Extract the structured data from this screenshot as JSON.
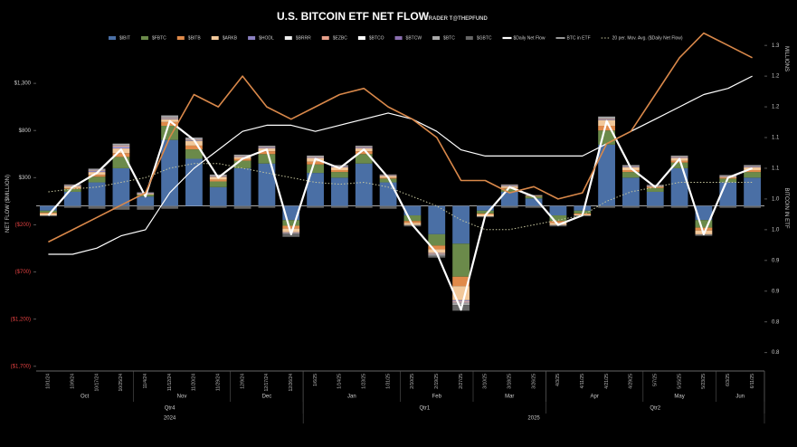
{
  "chart_data": {
    "type": "bar",
    "title": "U.S. BITCOIN ETF NET FLOW",
    "subtitle": "TRADER T@THEPFUND",
    "y_label": "NET FLOW ($MILLION)",
    "y2_label": "BITCOIN IN ETF",
    "y2_unit": "MILLIONS",
    "categories": [
      "10/1/24",
      "10/9/24",
      "10/17/24",
      "10/25/24",
      "11/4/24",
      "11/12/24",
      "11/20/24",
      "11/29/24",
      "12/9/24",
      "12/17/24",
      "12/26/24",
      "1/6/25",
      "1/14/25",
      "1/23/25",
      "1/31/25",
      "2/10/25",
      "2/19/25",
      "2/27/25",
      "3/10/25",
      "3/18/25",
      "3/26/25",
      "4/3/25",
      "4/11/25",
      "4/21/25",
      "4/29/25",
      "5/7/25",
      "5/15/25",
      "5/23/25",
      "6/3/25",
      "6/11/25"
    ],
    "x_groups": [
      [
        {
          "label": "Oct",
          "from": 0,
          "to": 3
        },
        {
          "label": "Nov",
          "from": 4,
          "to": 7
        },
        {
          "label": "Dec",
          "from": 8,
          "to": 10
        },
        {
          "label": "Jan",
          "from": 11,
          "to": 14
        },
        {
          "label": "Feb",
          "from": 15,
          "to": 17
        },
        {
          "label": "Mar",
          "from": 18,
          "to": 20
        },
        {
          "label": "Apr",
          "from": 21,
          "to": 24
        },
        {
          "label": "May",
          "from": 25,
          "to": 27
        },
        {
          "label": "Jun",
          "from": 28,
          "to": 29
        }
      ],
      [
        {
          "label": "Qtr4",
          "from": 0,
          "to": 10
        },
        {
          "label": "Qtr1",
          "from": 11,
          "to": 20
        },
        {
          "label": "Qtr2",
          "from": 21,
          "to": 29
        }
      ],
      [
        {
          "label": "2024",
          "from": 0,
          "to": 10
        },
        {
          "label": "2025",
          "from": 11,
          "to": 29
        }
      ]
    ],
    "ylim": [
      -1750,
      1800
    ],
    "yticks": [
      {
        "value": 1300,
        "label": "$1,300"
      },
      {
        "value": 800,
        "label": "$800"
      },
      {
        "value": 300,
        "label": "$300"
      },
      {
        "value": -200,
        "label": "($200)"
      },
      {
        "value": -700,
        "label": "($700)"
      },
      {
        "value": -1200,
        "label": "($1,200)"
      },
      {
        "value": -1700,
        "label": "($1,700)"
      }
    ],
    "y2lim": [
      0.77,
      1.315
    ],
    "y2ticks": [
      {
        "value": 1.3,
        "label": "1.3"
      },
      {
        "value": 1.25,
        "label": "1.2"
      },
      {
        "value": 1.2,
        "label": "1.2"
      },
      {
        "value": 1.15,
        "label": "1.1"
      },
      {
        "value": 1.1,
        "label": "1.1"
      },
      {
        "value": 1.05,
        "label": "1.0"
      },
      {
        "value": 1.0,
        "label": "1.0"
      },
      {
        "value": 0.95,
        "label": "0.9"
      },
      {
        "value": 0.9,
        "label": "0.9"
      },
      {
        "value": 0.85,
        "label": "0.8"
      },
      {
        "value": 0.8,
        "label": "0.8"
      }
    ],
    "series": [
      {
        "name": "$IBIT",
        "type": "bar",
        "color": "#4a6fa5",
        "values": [
          -50,
          150,
          250,
          400,
          100,
          700,
          500,
          200,
          400,
          450,
          -150,
          350,
          300,
          450,
          250,
          -100,
          -300,
          -400,
          -50,
          150,
          80,
          -100,
          -50,
          650,
          300,
          150,
          400,
          -150,
          250,
          300
        ]
      },
      {
        "name": "$FBTC",
        "type": "bar",
        "color": "#6b8a4a",
        "values": [
          -20,
          30,
          60,
          120,
          20,
          150,
          100,
          60,
          80,
          100,
          -60,
          90,
          60,
          100,
          40,
          -60,
          -120,
          -350,
          -30,
          30,
          20,
          -60,
          -30,
          150,
          60,
          40,
          60,
          -80,
          40,
          60
        ]
      },
      {
        "name": "$BITB",
        "type": "bar",
        "color": "#e08a4a",
        "values": [
          -10,
          10,
          20,
          40,
          0,
          40,
          40,
          20,
          20,
          30,
          -30,
          30,
          20,
          30,
          10,
          -20,
          -40,
          -100,
          -10,
          10,
          5,
          -20,
          -10,
          50,
          20,
          10,
          20,
          -30,
          10,
          20
        ]
      },
      {
        "name": "$ARKB",
        "type": "bar",
        "color": "#f2c89a",
        "values": [
          -20,
          20,
          30,
          50,
          10,
          30,
          50,
          30,
          20,
          30,
          -40,
          40,
          30,
          30,
          20,
          -20,
          -40,
          -150,
          -20,
          20,
          5,
          -20,
          -10,
          60,
          30,
          10,
          30,
          -40,
          10,
          30
        ]
      },
      {
        "name": "$HODL",
        "type": "bar",
        "color": "#8a80c0",
        "values": [
          0,
          5,
          10,
          15,
          5,
          5,
          5,
          5,
          5,
          5,
          -5,
          5,
          5,
          5,
          5,
          0,
          -5,
          -10,
          0,
          5,
          0,
          0,
          0,
          5,
          5,
          5,
          5,
          0,
          5,
          5
        ]
      },
      {
        "name": "$BRRR",
        "type": "bar",
        "color": "#eeeeee",
        "values": [
          0,
          2,
          3,
          5,
          0,
          3,
          3,
          2,
          2,
          3,
          -2,
          2,
          2,
          3,
          0,
          0,
          -3,
          -5,
          0,
          2,
          0,
          0,
          0,
          3,
          2,
          0,
          2,
          0,
          2,
          2
        ]
      },
      {
        "name": "$EZBC",
        "type": "bar",
        "color": "#e8a08a",
        "values": [
          0,
          3,
          5,
          8,
          2,
          5,
          5,
          3,
          3,
          5,
          -3,
          3,
          3,
          5,
          2,
          -2,
          -5,
          -8,
          0,
          3,
          0,
          -2,
          0,
          5,
          3,
          2,
          3,
          -2,
          3,
          3
        ]
      },
      {
        "name": "$BTCO",
        "type": "bar",
        "color": "#ffffff",
        "values": [
          0,
          2,
          5,
          5,
          2,
          5,
          5,
          2,
          3,
          3,
          -2,
          3,
          2,
          3,
          2,
          0,
          -3,
          -5,
          0,
          2,
          0,
          0,
          0,
          3,
          2,
          2,
          2,
          0,
          2,
          2
        ]
      },
      {
        "name": "$BTCW",
        "type": "bar",
        "color": "#8a6fb0",
        "values": [
          0,
          1,
          2,
          3,
          0,
          2,
          2,
          1,
          1,
          2,
          -1,
          1,
          1,
          2,
          0,
          0,
          -2,
          -3,
          0,
          1,
          0,
          0,
          0,
          2,
          1,
          0,
          1,
          0,
          1,
          1
        ]
      },
      {
        "name": "$BTC",
        "type": "bar",
        "color": "#aaaaaa",
        "values": [
          0,
          5,
          10,
          15,
          5,
          20,
          15,
          10,
          10,
          10,
          -5,
          10,
          10,
          10,
          5,
          -5,
          -10,
          -20,
          0,
          5,
          5,
          -5,
          0,
          20,
          10,
          5,
          10,
          -5,
          5,
          10
        ]
      },
      {
        "name": "$GBTC",
        "type": "bar",
        "color": "#666666",
        "values": [
          -10,
          -20,
          -30,
          -40,
          -40,
          -30,
          0,
          -20,
          -30,
          -20,
          -30,
          -20,
          -20,
          -20,
          -30,
          -10,
          -20,
          -60,
          -10,
          -20,
          -20,
          -10,
          -10,
          -20,
          -20,
          -20,
          -20,
          -10,
          -20,
          -20
        ]
      },
      {
        "name": "$Daily Net Flow",
        "type": "line",
        "color": "#ffffff",
        "width": 2.2,
        "values": [
          -100,
          200,
          350,
          600,
          100,
          900,
          700,
          300,
          500,
          600,
          -300,
          500,
          400,
          600,
          300,
          -200,
          -500,
          -1100,
          -100,
          200,
          100,
          -200,
          -100,
          900,
          400,
          200,
          500,
          -300,
          300,
          400
        ]
      },
      {
        "name": "BTC in ETF",
        "type": "line",
        "axis": "y2",
        "color": "#ffffff",
        "width": 1.2,
        "values": [
          0.96,
          0.96,
          0.97,
          0.99,
          1.0,
          1.06,
          1.1,
          1.13,
          1.16,
          1.17,
          1.17,
          1.16,
          1.17,
          1.18,
          1.19,
          1.18,
          1.16,
          1.13,
          1.12,
          1.12,
          1.12,
          1.12,
          1.12,
          1.14,
          1.16,
          1.18,
          1.2,
          1.22,
          1.23,
          1.25
        ]
      },
      {
        "name": "20 per. Mov. Avg. ($Daily Net Flow)",
        "type": "line",
        "dash": true,
        "color": "#c8c8a0",
        "width": 1,
        "values": [
          150,
          180,
          200,
          250,
          300,
          400,
          450,
          450,
          400,
          350,
          300,
          250,
          230,
          250,
          200,
          100,
          0,
          -150,
          -250,
          -250,
          -200,
          -150,
          -100,
          50,
          150,
          200,
          250,
          250,
          250,
          250
        ]
      },
      {
        "type": "line",
        "axis": "y2",
        "color": "#d9884a",
        "width": 1.6,
        "values": [
          0.98,
          1.0,
          1.02,
          1.04,
          1.06,
          1.15,
          1.22,
          1.2,
          1.25,
          1.2,
          1.18,
          1.2,
          1.22,
          1.23,
          1.2,
          1.18,
          1.15,
          1.08,
          1.08,
          1.06,
          1.07,
          1.05,
          1.06,
          1.14,
          1.16,
          1.22,
          1.28,
          1.32,
          1.3,
          1.28
        ]
      }
    ]
  }
}
